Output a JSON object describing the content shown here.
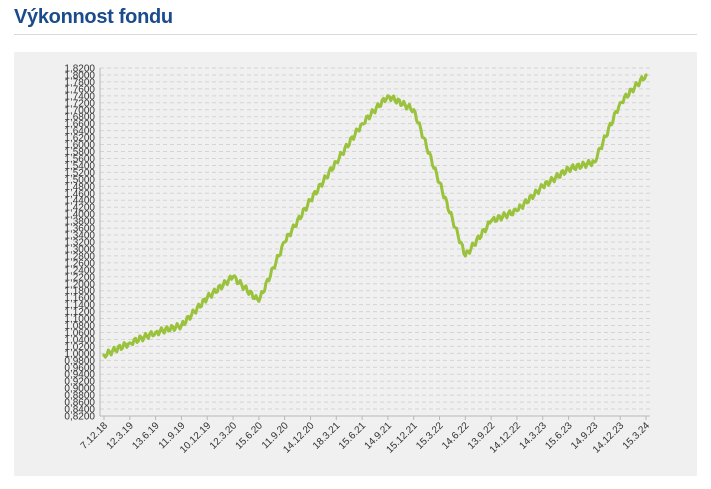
{
  "page": {
    "title": "Výkonnost fondu"
  },
  "chart_data": {
    "type": "line",
    "title": "",
    "xlabel": "",
    "ylabel": "",
    "ylim": [
      0.82,
      1.82
    ],
    "y_ticks": [
      "1,8200",
      "1,8000",
      "1,7800",
      "1,7600",
      "1,7400",
      "1,7200",
      "1,7000",
      "1,6800",
      "1,6600",
      "1,6400",
      "1,6200",
      "1,6000",
      "1,5800",
      "1,5600",
      "1,5400",
      "1,5200",
      "1,5000",
      "1,4800",
      "1,4600",
      "1,4400",
      "1,4200",
      "1,4000",
      "1,3800",
      "1,3600",
      "1,3400",
      "1,3200",
      "1,3000",
      "1,2800",
      "1,2600",
      "1,2400",
      "1,2200",
      "1,2000",
      "1,1800",
      "1,1600",
      "1,1400",
      "1,1200",
      "1,1000",
      "1,0800",
      "1,0600",
      "1,0400",
      "1,0200",
      "1,0000",
      "0,9800",
      "0,9600",
      "0,9400",
      "0,9200",
      "0,9000",
      "0,8800",
      "0,8600",
      "0,8400",
      "0,8200"
    ],
    "x_ticks": [
      "7.12.18",
      "12.3.19",
      "13.6.19",
      "11.9.19",
      "10.12.19",
      "12.3.20",
      "15.6.20",
      "11.9.20",
      "14.12.20",
      "18.3.21",
      "15.6.21",
      "14.9.21",
      "15.12.21",
      "15.3.22",
      "14.6.22",
      "13.9.22",
      "14.12.22",
      "14.3.23",
      "15.6.23",
      "14.9.23",
      "14.12.23",
      "15.3.24"
    ],
    "grid": true,
    "legend": "none",
    "series": [
      {
        "color": "#9ac23c",
        "x": [
          "7.12.18",
          "12.3.19",
          "13.6.19",
          "11.9.19",
          "10.12.19",
          "12.3.20",
          "15.6.20",
          "11.9.20",
          "14.12.20",
          "18.3.21",
          "15.6.21",
          "14.9.21",
          "15.12.21",
          "15.3.22",
          "14.6.22",
          "13.9.22",
          "14.12.22",
          "14.3.23",
          "15.6.23",
          "14.9.23",
          "14.12.23",
          "15.3.24"
        ],
        "values": [
          0.995,
          1.03,
          1.06,
          1.08,
          1.16,
          1.22,
          1.15,
          1.32,
          1.44,
          1.55,
          1.66,
          1.74,
          1.7,
          1.49,
          1.28,
          1.38,
          1.41,
          1.48,
          1.53,
          1.55,
          1.72,
          1.8
        ]
      }
    ]
  }
}
